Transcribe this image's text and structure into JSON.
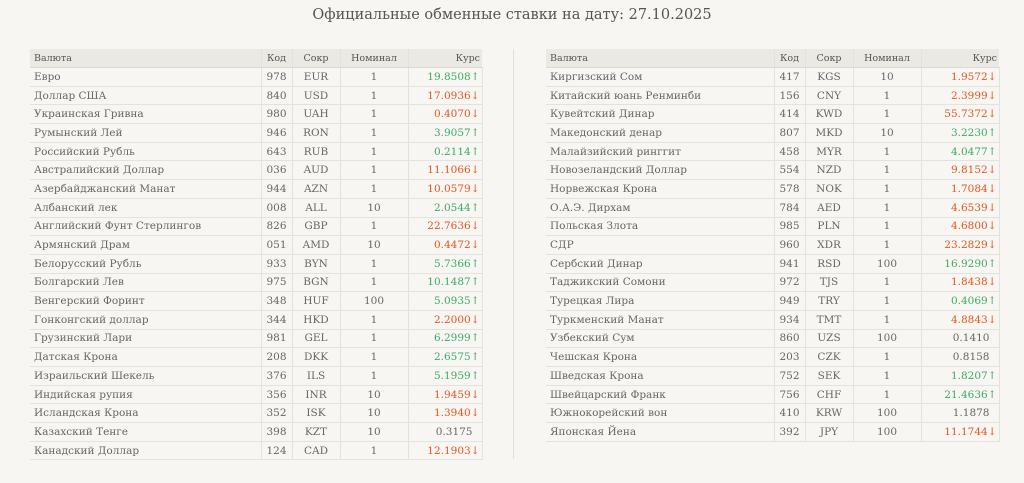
{
  "page_title": "Официальные обменные ставки на дату: 27.10.2025",
  "headers": {
    "currency": "Валюта",
    "code": "Код",
    "abbr": "Сокр",
    "nominal": "Номинал",
    "rate": "Курс"
  },
  "colors": {
    "up": "#3daa66",
    "down": "#e5551d",
    "header_bg": "#ebe9e4"
  },
  "left_rows": [
    {
      "name": "Евро",
      "code": "978",
      "abbr": "EUR",
      "nominal": "1",
      "rate": "19.8508",
      "trend": "up"
    },
    {
      "name": "Доллар США",
      "code": "840",
      "abbr": "USD",
      "nominal": "1",
      "rate": "17.0936",
      "trend": "down"
    },
    {
      "name": "Украинская Гривна",
      "code": "980",
      "abbr": "UAH",
      "nominal": "1",
      "rate": "0.4070",
      "trend": "down"
    },
    {
      "name": "Румынский Лей",
      "code": "946",
      "abbr": "RON",
      "nominal": "1",
      "rate": "3.9057",
      "trend": "up"
    },
    {
      "name": "Российский Рубль",
      "code": "643",
      "abbr": "RUB",
      "nominal": "1",
      "rate": "0.2114",
      "trend": "up"
    },
    {
      "name": "Австралийский Доллар",
      "code": "036",
      "abbr": "AUD",
      "nominal": "1",
      "rate": "11.1066",
      "trend": "down"
    },
    {
      "name": "Азербайджанский Манат",
      "code": "944",
      "abbr": "AZN",
      "nominal": "1",
      "rate": "10.0579",
      "trend": "down"
    },
    {
      "name": "Албанский лек",
      "code": "008",
      "abbr": "ALL",
      "nominal": "10",
      "rate": "2.0544",
      "trend": "up"
    },
    {
      "name": "Английский Фунт Стерлингов",
      "code": "826",
      "abbr": "GBP",
      "nominal": "1",
      "rate": "22.7636",
      "trend": "down"
    },
    {
      "name": "Армянский Драм",
      "code": "051",
      "abbr": "AMD",
      "nominal": "10",
      "rate": "0.4472",
      "trend": "down"
    },
    {
      "name": "Белорусский Рубль",
      "code": "933",
      "abbr": "BYN",
      "nominal": "1",
      "rate": "5.7366",
      "trend": "up"
    },
    {
      "name": "Болгарский Лев",
      "code": "975",
      "abbr": "BGN",
      "nominal": "1",
      "rate": "10.1487",
      "trend": "up"
    },
    {
      "name": "Венгерский Форинт",
      "code": "348",
      "abbr": "HUF",
      "nominal": "100",
      "rate": "5.0935",
      "trend": "up"
    },
    {
      "name": "Гонконгский доллар",
      "code": "344",
      "abbr": "HKD",
      "nominal": "1",
      "rate": "2.2000",
      "trend": "down"
    },
    {
      "name": "Грузинский Лари",
      "code": "981",
      "abbr": "GEL",
      "nominal": "1",
      "rate": "6.2999",
      "trend": "up"
    },
    {
      "name": "Датская Крона",
      "code": "208",
      "abbr": "DKK",
      "nominal": "1",
      "rate": "2.6575",
      "trend": "up"
    },
    {
      "name": "Израильский Шекель",
      "code": "376",
      "abbr": "ILS",
      "nominal": "1",
      "rate": "5.1959",
      "trend": "up"
    },
    {
      "name": "Индийская рупия",
      "code": "356",
      "abbr": "INR",
      "nominal": "10",
      "rate": "1.9459",
      "trend": "down"
    },
    {
      "name": "Исландская Крона",
      "code": "352",
      "abbr": "ISK",
      "nominal": "10",
      "rate": "1.3940",
      "trend": "down"
    },
    {
      "name": "Казахский Тенге",
      "code": "398",
      "abbr": "KZT",
      "nominal": "10",
      "rate": "0.3175",
      "trend": "flat"
    },
    {
      "name": "Канадский Доллар",
      "code": "124",
      "abbr": "CAD",
      "nominal": "1",
      "rate": "12.1903",
      "trend": "down"
    }
  ],
  "right_rows": [
    {
      "name": "Киргизский Сом",
      "code": "417",
      "abbr": "KGS",
      "nominal": "10",
      "rate": "1.9572",
      "trend": "down"
    },
    {
      "name": "Китайский юань Ренминби",
      "code": "156",
      "abbr": "CNY",
      "nominal": "1",
      "rate": "2.3999",
      "trend": "down"
    },
    {
      "name": "Кувейтский Динар",
      "code": "414",
      "abbr": "KWD",
      "nominal": "1",
      "rate": "55.7372",
      "trend": "down"
    },
    {
      "name": "Македонский денар",
      "code": "807",
      "abbr": "MKD",
      "nominal": "10",
      "rate": "3.2230",
      "trend": "up"
    },
    {
      "name": "Малайзийский ринггит",
      "code": "458",
      "abbr": "MYR",
      "nominal": "1",
      "rate": "4.0477",
      "trend": "up"
    },
    {
      "name": "Новозеландский Доллар",
      "code": "554",
      "abbr": "NZD",
      "nominal": "1",
      "rate": "9.8152",
      "trend": "down"
    },
    {
      "name": "Норвежская Крона",
      "code": "578",
      "abbr": "NOK",
      "nominal": "1",
      "rate": "1.7084",
      "trend": "down"
    },
    {
      "name": "О.А.Э. Дирхам",
      "code": "784",
      "abbr": "AED",
      "nominal": "1",
      "rate": "4.6539",
      "trend": "down"
    },
    {
      "name": "Польская Злота",
      "code": "985",
      "abbr": "PLN",
      "nominal": "1",
      "rate": "4.6800",
      "trend": "down"
    },
    {
      "name": "СДР",
      "code": "960",
      "abbr": "XDR",
      "nominal": "1",
      "rate": "23.2829",
      "trend": "down"
    },
    {
      "name": "Сербский Динар",
      "code": "941",
      "abbr": "RSD",
      "nominal": "100",
      "rate": "16.9290",
      "trend": "up"
    },
    {
      "name": "Таджикский Сомони",
      "code": "972",
      "abbr": "TJS",
      "nominal": "1",
      "rate": "1.8438",
      "trend": "down"
    },
    {
      "name": "Турецкая Лира",
      "code": "949",
      "abbr": "TRY",
      "nominal": "1",
      "rate": "0.4069",
      "trend": "up"
    },
    {
      "name": "Туркменский Манат",
      "code": "934",
      "abbr": "TMT",
      "nominal": "1",
      "rate": "4.8843",
      "trend": "down"
    },
    {
      "name": "Узбекский Сум",
      "code": "860",
      "abbr": "UZS",
      "nominal": "100",
      "rate": "0.1410",
      "trend": "flat"
    },
    {
      "name": "Чешская Крона",
      "code": "203",
      "abbr": "CZK",
      "nominal": "1",
      "rate": "0.8158",
      "trend": "flat"
    },
    {
      "name": "Шведская Крона",
      "code": "752",
      "abbr": "SEK",
      "nominal": "1",
      "rate": "1.8207",
      "trend": "up"
    },
    {
      "name": "Швейцарский Франк",
      "code": "756",
      "abbr": "CHF",
      "nominal": "1",
      "rate": "21.4636",
      "trend": "up"
    },
    {
      "name": "Южнокорейский вон",
      "code": "410",
      "abbr": "KRW",
      "nominal": "100",
      "rate": "1.1878",
      "trend": "flat"
    },
    {
      "name": "Японская Йена",
      "code": "392",
      "abbr": "JPY",
      "nominal": "100",
      "rate": "11.1744",
      "trend": "down"
    }
  ]
}
